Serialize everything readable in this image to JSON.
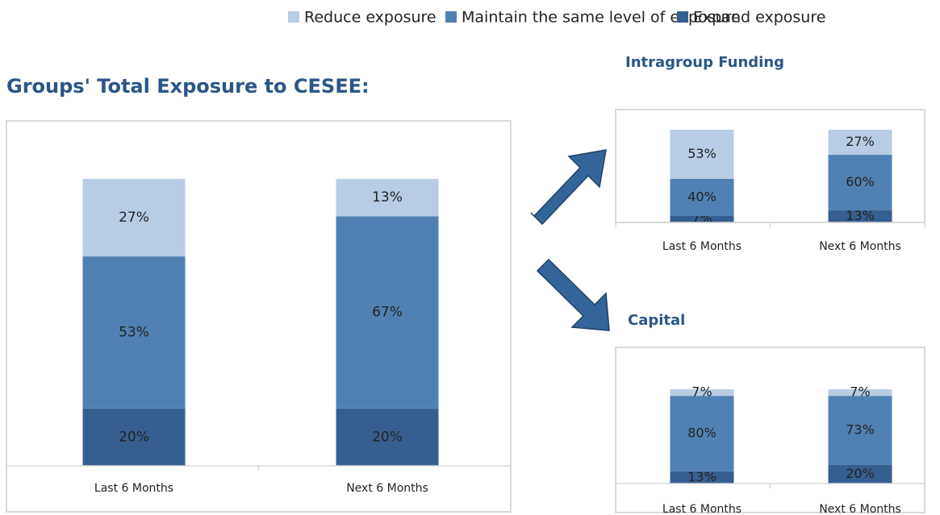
{
  "chart_data": [
    {
      "type": "stacked_bar",
      "title": "Groups' Total Exposure to CESEE:",
      "categories": [
        "Last 6 Months",
        "Next 6 Months"
      ],
      "ylim": [
        0,
        100
      ],
      "series": [
        {
          "name": "Reduce exposure",
          "color": "#b8cce4",
          "values": [
            27,
            13
          ],
          "value_labels": [
            "27%",
            "13%"
          ]
        },
        {
          "name": "Maintain the same level of exposure",
          "color": "#4f81b4",
          "values": [
            53,
            67
          ],
          "value_labels": [
            "53%",
            "67%"
          ]
        },
        {
          "name": "Expand exposure",
          "color": "#365f91",
          "values": [
            20,
            20
          ],
          "value_labels": [
            "20%",
            "20%"
          ]
        }
      ]
    },
    {
      "type": "stacked_bar",
      "title": "Intragroup Funding",
      "categories": [
        "Last 6 Months",
        "Next 6 Months"
      ],
      "ylim": [
        0,
        100
      ],
      "series": [
        {
          "color": "#b8cce4",
          "values": [
            53,
            27
          ],
          "value_labels": [
            "53%",
            "27%"
          ]
        },
        {
          "color": "#4f81b4",
          "values": [
            40,
            60
          ],
          "value_labels": [
            "40%",
            "60%"
          ]
        },
        {
          "color": "#365f91",
          "values": [
            7,
            13
          ],
          "value_labels": [
            "7%",
            "13%"
          ]
        }
      ]
    },
    {
      "type": "stacked_bar",
      "title": "Capital",
      "categories": [
        "Last 6 Months",
        "Next 6 Months"
      ],
      "ylim": [
        0,
        100
      ],
      "series": [
        {
          "color": "#b8cce4",
          "values": [
            7,
            7
          ],
          "value_labels": [
            "7%",
            "7%"
          ]
        },
        {
          "color": "#4f81b4",
          "values": [
            80,
            73
          ],
          "value_labels": [
            "80%",
            "73%"
          ]
        },
        {
          "color": "#365f91",
          "values": [
            13,
            20
          ],
          "value_labels": [
            "13%",
            "20%"
          ]
        }
      ]
    }
  ]
}
